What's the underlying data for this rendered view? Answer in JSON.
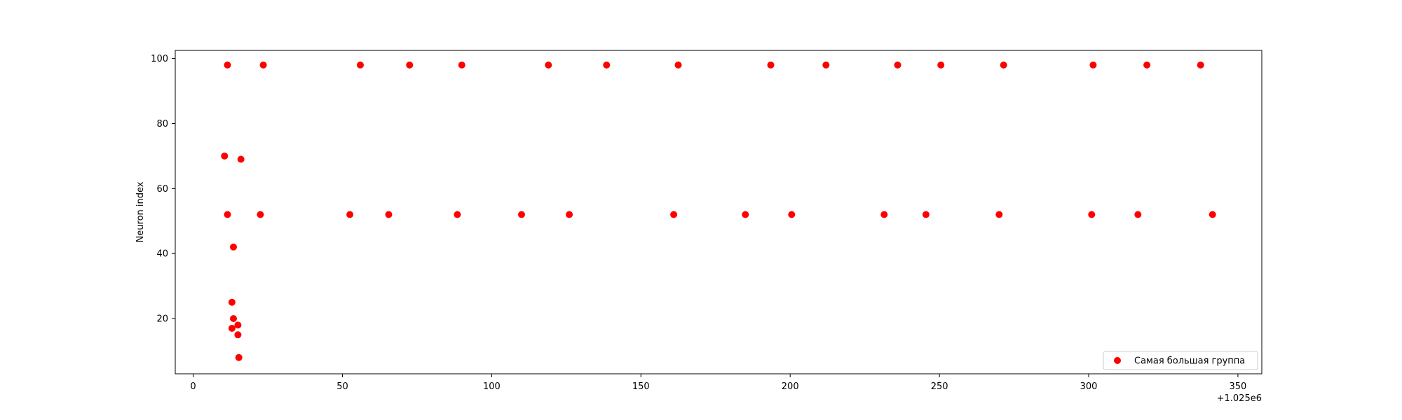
{
  "chart_data": {
    "type": "scatter",
    "title": "",
    "xlabel": "",
    "ylabel": "Neuron index",
    "x_offset_label": "+1.025e6",
    "xlim": [
      -6,
      358
    ],
    "ylim": [
      3,
      102.5
    ],
    "xticks": [
      0,
      50,
      100,
      150,
      200,
      250,
      300,
      350
    ],
    "yticks": [
      20,
      40,
      60,
      80,
      100
    ],
    "grid": false,
    "legend_position": "lower right",
    "series": [
      {
        "name": "Самая большая группа",
        "color": "#ff0000",
        "points": [
          {
            "x": 11.5,
            "y": 98
          },
          {
            "x": 23.5,
            "y": 98
          },
          {
            "x": 56,
            "y": 98
          },
          {
            "x": 72.5,
            "y": 98
          },
          {
            "x": 90,
            "y": 98
          },
          {
            "x": 119,
            "y": 98
          },
          {
            "x": 138.5,
            "y": 98
          },
          {
            "x": 162.5,
            "y": 98
          },
          {
            "x": 193.5,
            "y": 98
          },
          {
            "x": 212,
            "y": 98
          },
          {
            "x": 236,
            "y": 98
          },
          {
            "x": 250.5,
            "y": 98
          },
          {
            "x": 271.5,
            "y": 98
          },
          {
            "x": 301.5,
            "y": 98
          },
          {
            "x": 319.5,
            "y": 98
          },
          {
            "x": 337.5,
            "y": 98
          },
          {
            "x": 10.5,
            "y": 70
          },
          {
            "x": 16,
            "y": 69
          },
          {
            "x": 11.5,
            "y": 52
          },
          {
            "x": 22.5,
            "y": 52
          },
          {
            "x": 52.5,
            "y": 52
          },
          {
            "x": 65.5,
            "y": 52
          },
          {
            "x": 88.5,
            "y": 52
          },
          {
            "x": 110,
            "y": 52
          },
          {
            "x": 126,
            "y": 52
          },
          {
            "x": 161,
            "y": 52
          },
          {
            "x": 185,
            "y": 52
          },
          {
            "x": 200.5,
            "y": 52
          },
          {
            "x": 231.5,
            "y": 52
          },
          {
            "x": 245.5,
            "y": 52
          },
          {
            "x": 270,
            "y": 52
          },
          {
            "x": 301,
            "y": 52
          },
          {
            "x": 316.5,
            "y": 52
          },
          {
            "x": 341.5,
            "y": 52
          },
          {
            "x": 13.5,
            "y": 42
          },
          {
            "x": 13,
            "y": 25
          },
          {
            "x": 13.5,
            "y": 20
          },
          {
            "x": 15,
            "y": 18
          },
          {
            "x": 13,
            "y": 17
          },
          {
            "x": 15,
            "y": 15
          },
          {
            "x": 15.3,
            "y": 8
          }
        ]
      }
    ]
  }
}
